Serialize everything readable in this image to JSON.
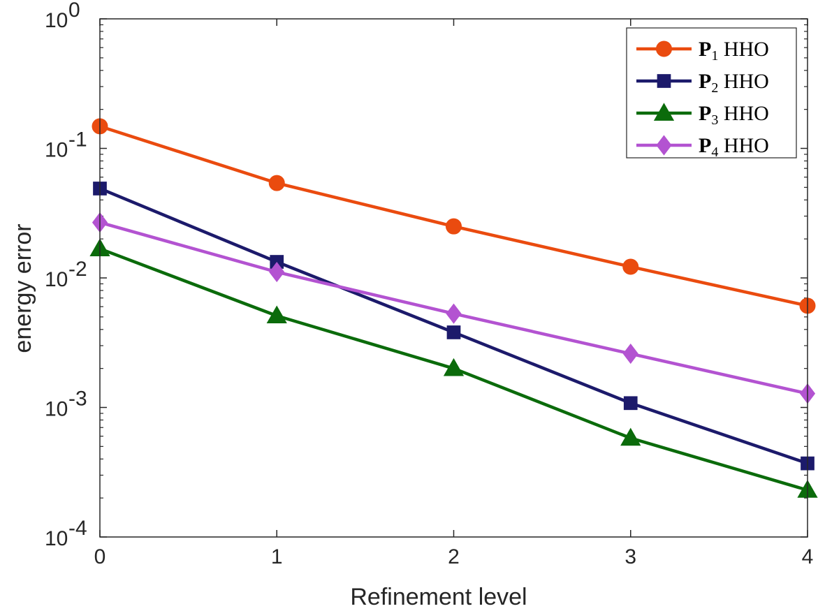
{
  "chart_data": {
    "type": "line",
    "title": "",
    "xlabel": "Refinement level",
    "ylabel": "energy error",
    "xlim": [
      0,
      4
    ],
    "ylim": [
      0.0001,
      1
    ],
    "yscale": "log",
    "grid": false,
    "legend_position": "top-right",
    "x_ticks": [
      "0",
      "1",
      "2",
      "3",
      "4"
    ],
    "y_ticks": [
      {
        "value": 1,
        "base": "10",
        "exp": "0"
      },
      {
        "value": 0.1,
        "base": "10",
        "exp": "-1"
      },
      {
        "value": 0.01,
        "base": "10",
        "exp": "-2"
      },
      {
        "value": 0.001,
        "base": "10",
        "exp": "-3"
      },
      {
        "value": 0.0001,
        "base": "10",
        "exp": "-4"
      }
    ],
    "x": [
      0,
      1,
      2,
      3,
      4
    ],
    "series": [
      {
        "name": "P",
        "sub": "1",
        "suffix": "HHO",
        "color": "#ea4b0f",
        "marker": "circle",
        "values": [
          0.148,
          0.054,
          0.025,
          0.0122,
          0.0061
        ]
      },
      {
        "name": "P",
        "sub": "2",
        "suffix": "HHO",
        "color": "#1c1a6b",
        "marker": "square",
        "values": [
          0.049,
          0.0133,
          0.0038,
          0.00108,
          0.00037
        ]
      },
      {
        "name": "P",
        "sub": "3",
        "suffix": "HHO",
        "color": "#0b6b0b",
        "marker": "triangle",
        "values": [
          0.0168,
          0.0051,
          0.002,
          0.00058,
          0.00023
        ]
      },
      {
        "name": "P",
        "sub": "4",
        "suffix": "HHO",
        "color": "#b353d1",
        "marker": "diamond",
        "values": [
          0.0268,
          0.0111,
          0.0053,
          0.0026,
          0.00128
        ]
      }
    ]
  }
}
